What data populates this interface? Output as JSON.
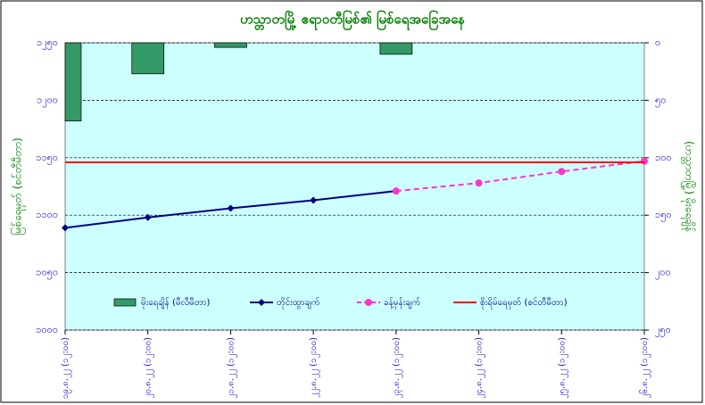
{
  "chart_data": {
    "type": "combo",
    "title": "ဟသ္တာတမြို့ ဧရာဝတီမြစ်၏ မြစ်ရေအခြေအနေ",
    "y_label": "မြစ်ရေမှတ် (စင်တီမီတာ)",
    "y2_label": "(ဟသ္တာတမြို့) မိုးရေချိန်",
    "categories": [
      "၁၉.၈.၂၂ (၁၂:၀၀)",
      "၂၀.၈.၂၂ (၁၂:၀၀)",
      "၂၁.၈.၂၂ (၁၂:၀၀)",
      "၂၂.၈.၂၂ (၁၂:၀၀)",
      "၂၃.၈.၂၂ (၁၂:၀၀)",
      "၂၄.၈.၂၂ (၁၂:၀၀)",
      "၂၅.၈.၂၂ (၁၂:၀၀)",
      "၂၆.၈.၂၂ (၁၂:၀၀)"
    ],
    "ylim": [
      1000,
      1250
    ],
    "yticks": [
      {
        "value": 1000,
        "label": "၁၀၀၀"
      },
      {
        "value": 1050,
        "label": "၁၀၅၀"
      },
      {
        "value": 1100,
        "label": "၁၁၀၀"
      },
      {
        "value": 1150,
        "label": "၁၁၅၀"
      },
      {
        "value": 1200,
        "label": "၁၂၀၀"
      },
      {
        "value": 1250,
        "label": "၁၂၅၀"
      }
    ],
    "y2lim": [
      250,
      0
    ],
    "y2ticks": [
      {
        "value": 0,
        "label": "၀"
      },
      {
        "value": 50,
        "label": "၅၀"
      },
      {
        "value": 100,
        "label": "၁၀၀"
      },
      {
        "value": 150,
        "label": "၁၅၀"
      },
      {
        "value": 200,
        "label": "၂၀၀"
      },
      {
        "value": 250,
        "label": "၂၅၀"
      }
    ],
    "grid": true,
    "series": [
      {
        "name": "မိုးရေချိန် (မီလီမီတာ)",
        "kind": "bar",
        "axis": "y2",
        "color": "#339966",
        "values": [
          68,
          27,
          4,
          null,
          10,
          null,
          null,
          null
        ]
      },
      {
        "name": "တိုင်းထွာချက်",
        "kind": "line",
        "color": "#000080",
        "values": [
          1089,
          1098,
          1106,
          1113,
          1121,
          null,
          null,
          null
        ]
      },
      {
        "name": "ခန့်မှန်းချက်",
        "kind": "dashed",
        "color": "#ff33cc",
        "values": [
          null,
          null,
          null,
          null,
          1121,
          1128,
          1138,
          1147
        ]
      },
      {
        "name": "စိုးရိမ်ရေမှတ် (စင်တီမီတာ)",
        "kind": "plain",
        "color": "#ff0000",
        "values": [
          1146,
          1146,
          1146,
          1146,
          1146,
          1146,
          1146,
          1146
        ]
      }
    ]
  }
}
